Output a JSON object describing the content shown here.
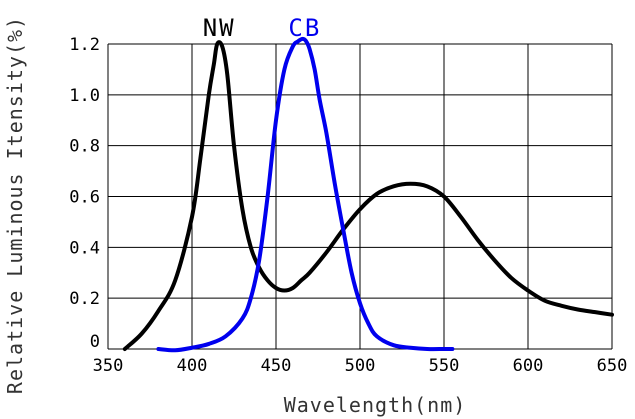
{
  "chart_data": {
    "type": "line",
    "title": "",
    "xlabel": "Wavelength(nm)",
    "ylabel": "Relative Luminous Itensity(%)",
    "xlim": [
      350,
      650
    ],
    "ylim": [
      0,
      1.2
    ],
    "grid": true,
    "x_ticks": [
      "350",
      "400",
      "450",
      "500",
      "550",
      "600",
      "650"
    ],
    "y_ticks": [
      "0",
      "0.2",
      "0.4",
      "0.6",
      "0.8",
      "1.0",
      "1.2"
    ],
    "series": [
      {
        "name": "NW",
        "color": "#000000",
        "x": [
          360,
          370,
          380,
          390,
          400,
          405,
          410,
          413,
          415,
          418,
          421,
          425,
          430,
          435,
          440,
          445,
          450,
          455,
          460,
          465,
          470,
          480,
          490,
          500,
          510,
          520,
          530,
          540,
          550,
          560,
          570,
          580,
          590,
          600,
          610,
          620,
          630,
          640,
          650
        ],
        "y": [
          0,
          0.06,
          0.15,
          0.27,
          0.52,
          0.75,
          1.0,
          1.12,
          1.2,
          1.19,
          1.08,
          0.8,
          0.55,
          0.4,
          0.32,
          0.27,
          0.24,
          0.23,
          0.24,
          0.27,
          0.3,
          0.38,
          0.47,
          0.55,
          0.61,
          0.64,
          0.65,
          0.64,
          0.6,
          0.52,
          0.43,
          0.35,
          0.28,
          0.23,
          0.19,
          0.17,
          0.155,
          0.145,
          0.135
        ]
      },
      {
        "name": "CB",
        "color": "#0000ee",
        "x": [
          380,
          390,
          400,
          410,
          420,
          430,
          435,
          440,
          445,
          450,
          455,
          460,
          463,
          466,
          468,
          470,
          473,
          476,
          480,
          485,
          490,
          495,
          500,
          505,
          510,
          520,
          530,
          540,
          550,
          555
        ],
        "y": [
          0,
          -0.005,
          0.005,
          0.02,
          0.05,
          0.12,
          0.2,
          0.35,
          0.6,
          0.9,
          1.1,
          1.19,
          1.21,
          1.22,
          1.21,
          1.18,
          1.1,
          0.98,
          0.85,
          0.65,
          0.47,
          0.3,
          0.18,
          0.1,
          0.05,
          0.015,
          0.005,
          0,
          0,
          0
        ]
      }
    ]
  }
}
